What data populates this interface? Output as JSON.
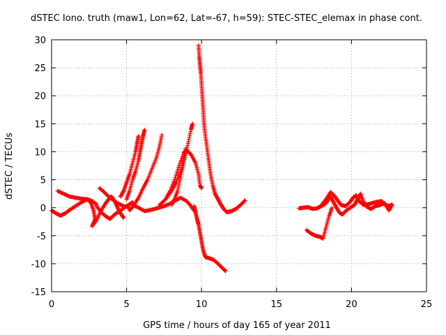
{
  "chart_data": {
    "type": "scatter",
    "title": "dSTEC Iono. truth (maw1, Lon=62, Lat=-67, h=59): STEC-STEC_elemax in phase cont.",
    "xlabel": "GPS time / hours of day 165 of year 2011",
    "ylabel": "dSTEC  / TECUs",
    "xlim": [
      0,
      25
    ],
    "ylim": [
      -15,
      30
    ],
    "xticks": [
      0,
      5,
      10,
      15,
      20,
      25
    ],
    "yticks": [
      -15,
      -10,
      -5,
      0,
      5,
      10,
      15,
      20,
      25,
      30
    ],
    "grid": true,
    "marker": "+",
    "color": "#ff0000",
    "series": [
      {
        "segments": [
          [
            [
              0.0,
              -0.5
            ],
            [
              0.3,
              -1.0
            ],
            [
              0.6,
              -1.4
            ],
            [
              0.9,
              -1.0
            ],
            [
              1.2,
              -0.4
            ],
            [
              1.6,
              0.3
            ],
            [
              2.0,
              1.0
            ],
            [
              2.4,
              1.5
            ],
            [
              2.7,
              1.2
            ],
            [
              3.0,
              0.6
            ]
          ],
          [
            [
              0.4,
              3.0
            ],
            [
              0.8,
              2.5
            ],
            [
              1.2,
              2.0
            ],
            [
              1.6,
              1.8
            ],
            [
              2.0,
              1.6
            ],
            [
              2.4,
              1.5
            ],
            [
              2.6,
              1.0
            ],
            [
              2.8,
              -0.5
            ],
            [
              2.9,
              -2.0
            ],
            [
              2.7,
              -3.3
            ],
            [
              3.0,
              -2.2
            ],
            [
              3.3,
              -0.5
            ],
            [
              3.6,
              0.8
            ],
            [
              3.8,
              1.5
            ],
            [
              4.0,
              2.0
            ],
            [
              4.2,
              1.2
            ],
            [
              4.4,
              0.0
            ],
            [
              4.6,
              -1.0
            ],
            [
              4.8,
              -1.8
            ]
          ],
          [
            [
              3.0,
              0.3
            ],
            [
              3.3,
              -0.8
            ],
            [
              3.6,
              -1.5
            ],
            [
              3.9,
              -2.0
            ],
            [
              4.2,
              -1.2
            ],
            [
              4.6,
              -0.5
            ],
            [
              5.0,
              0.3
            ],
            [
              5.4,
              1.0
            ]
          ],
          [
            [
              3.2,
              3.5
            ],
            [
              3.5,
              2.8
            ],
            [
              3.8,
              2.0
            ],
            [
              4.1,
              1.4
            ],
            [
              4.4,
              0.8
            ],
            [
              4.8,
              0.3
            ],
            [
              5.2,
              0.0
            ]
          ],
          [
            [
              5.0,
              1.5
            ],
            [
              5.2,
              3.0
            ],
            [
              5.4,
              5.0
            ],
            [
              5.6,
              6.5
            ],
            [
              5.8,
              8.5
            ],
            [
              5.9,
              10.0
            ],
            [
              6.0,
              11.5
            ],
            [
              6.1,
              12.8
            ],
            [
              6.2,
              13.9
            ]
          ],
          [
            [
              4.6,
              2.0
            ],
            [
              4.8,
              3.0
            ],
            [
              5.0,
              4.5
            ],
            [
              5.2,
              6.0
            ],
            [
              5.4,
              8.0
            ],
            [
              5.6,
              10.0
            ],
            [
              5.7,
              11.5
            ],
            [
              5.8,
              12.8
            ]
          ],
          [
            [
              5.2,
              -0.5
            ],
            [
              5.5,
              0.5
            ],
            [
              5.8,
              1.8
            ],
            [
              6.1,
              3.5
            ],
            [
              6.4,
              5.0
            ],
            [
              6.7,
              7.0
            ],
            [
              7.0,
              9.0
            ],
            [
              7.2,
              11.0
            ],
            [
              7.35,
              13.0
            ]
          ],
          [
            [
              5.4,
              0.5
            ],
            [
              5.8,
              0.0
            ],
            [
              6.2,
              -0.6
            ],
            [
              6.6,
              -0.4
            ],
            [
              7.0,
              -0.1
            ],
            [
              7.4,
              0.2
            ],
            [
              7.8,
              0.6
            ],
            [
              8.2,
              1.2
            ],
            [
              8.6,
              1.8
            ],
            [
              9.0,
              1.2
            ],
            [
              9.3,
              0.3
            ],
            [
              9.5,
              -0.5
            ]
          ],
          [
            [
              7.2,
              0.5
            ],
            [
              7.6,
              1.5
            ],
            [
              8.0,
              3.0
            ],
            [
              8.3,
              4.5
            ],
            [
              8.6,
              6.5
            ],
            [
              8.9,
              9.0
            ],
            [
              9.1,
              11.5
            ],
            [
              9.3,
              14.0
            ],
            [
              9.4,
              15.0
            ]
          ],
          [
            [
              7.6,
              1.5
            ],
            [
              7.9,
              3.0
            ],
            [
              8.2,
              5.0
            ],
            [
              8.5,
              7.5
            ],
            [
              8.8,
              9.8
            ],
            [
              9.0,
              10.3
            ],
            [
              9.3,
              9.5
            ],
            [
              9.6,
              8.0
            ],
            [
              9.8,
              6.0
            ],
            [
              9.9,
              4.0
            ],
            [
              10.0,
              3.5
            ]
          ],
          [
            [
              8.0,
              0.5
            ],
            [
              8.2,
              1.5
            ],
            [
              8.4,
              3.0
            ],
            [
              8.6,
              5.5
            ],
            [
              8.8,
              8.0
            ],
            [
              8.9,
              10.5
            ]
          ],
          [
            [
              9.8,
              29.0
            ],
            [
              9.85,
              27.0
            ],
            [
              9.9,
              25.5
            ],
            [
              9.95,
              24.0
            ],
            [
              10.0,
              22.0
            ],
            [
              10.05,
              20.0
            ],
            [
              10.1,
              18.0
            ],
            [
              10.15,
              16.0
            ],
            [
              10.2,
              14.0
            ],
            [
              10.3,
              12.0
            ],
            [
              10.4,
              10.0
            ],
            [
              10.5,
              8.0
            ],
            [
              10.6,
              6.0
            ],
            [
              10.75,
              4.0
            ],
            [
              10.9,
              2.5
            ],
            [
              11.1,
              1.5
            ],
            [
              11.3,
              0.5
            ],
            [
              11.5,
              -0.3
            ],
            [
              11.7,
              -0.8
            ],
            [
              12.0,
              -0.6
            ],
            [
              12.3,
              -0.2
            ],
            [
              12.6,
              0.5
            ],
            [
              12.9,
              1.3
            ]
          ],
          [
            [
              9.5,
              0.3
            ],
            [
              9.6,
              -0.8
            ],
            [
              9.7,
              -2.0
            ],
            [
              9.8,
              -3.0
            ],
            [
              9.9,
              -4.5
            ],
            [
              10.0,
              -6.0
            ],
            [
              10.1,
              -7.5
            ],
            [
              10.25,
              -8.8
            ],
            [
              10.5,
              -9.0
            ],
            [
              10.8,
              -9.3
            ],
            [
              11.1,
              -10.0
            ],
            [
              11.4,
              -10.8
            ],
            [
              11.6,
              -11.3
            ]
          ],
          [
            [
              16.5,
              -0.1
            ],
            [
              16.8,
              0.0
            ],
            [
              17.1,
              0.1
            ],
            [
              17.4,
              -0.2
            ],
            [
              17.7,
              -0.1
            ],
            [
              18.0,
              0.3
            ],
            [
              18.3,
              0.8
            ],
            [
              18.6,
              2.0
            ],
            [
              18.8,
              1.0
            ],
            [
              19.0,
              0.0
            ],
            [
              19.2,
              -0.9
            ],
            [
              19.4,
              -1.2
            ],
            [
              19.6,
              -0.6
            ],
            [
              19.9,
              0.0
            ],
            [
              20.2,
              0.5
            ],
            [
              20.4,
              1.5
            ],
            [
              20.6,
              2.5
            ],
            [
              20.8,
              1.0
            ],
            [
              21.0,
              0.2
            ],
            [
              21.3,
              -0.2
            ],
            [
              21.6,
              0.3
            ],
            [
              21.9,
              0.5
            ],
            [
              22.2,
              0.8
            ],
            [
              22.5,
              -0.5
            ],
            [
              22.7,
              0.6
            ]
          ],
          [
            [
              18.0,
              0.5
            ],
            [
              18.3,
              1.5
            ],
            [
              18.6,
              2.8
            ],
            [
              18.9,
              2.0
            ],
            [
              19.1,
              1.2
            ],
            [
              19.3,
              0.5
            ],
            [
              19.6,
              0.3
            ],
            [
              19.9,
              1.0
            ],
            [
              20.1,
              1.8
            ],
            [
              20.3,
              2.2
            ],
            [
              20.5,
              1.2
            ],
            [
              20.8,
              0.5
            ],
            [
              21.2,
              0.7
            ],
            [
              21.6,
              1.0
            ],
            [
              22.0,
              1.2
            ],
            [
              22.4,
              0.3
            ],
            [
              22.7,
              0.5
            ]
          ],
          [
            [
              17.0,
              -4.0
            ],
            [
              17.3,
              -4.6
            ],
            [
              17.6,
              -5.0
            ],
            [
              17.9,
              -5.2
            ],
            [
              18.1,
              -5.5
            ],
            [
              18.3,
              -3.5
            ],
            [
              18.5,
              -1.5
            ],
            [
              18.7,
              0.0
            ]
          ]
        ]
      }
    ]
  }
}
